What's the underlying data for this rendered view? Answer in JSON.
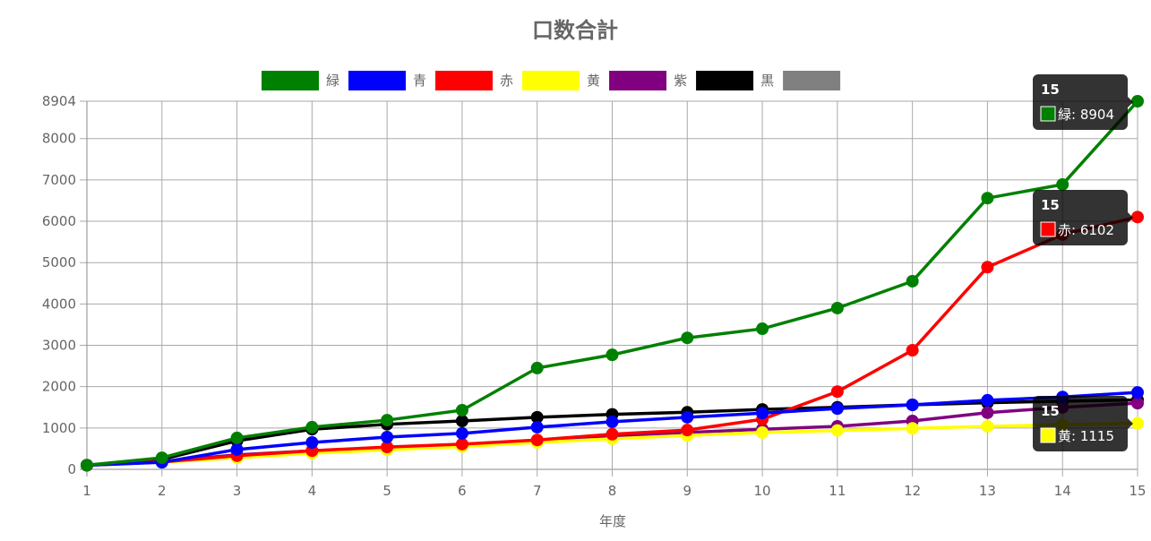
{
  "chart_data": {
    "type": "line",
    "title": "口数合計",
    "x_label": "年度",
    "x": [
      1,
      2,
      3,
      4,
      5,
      6,
      7,
      8,
      9,
      10,
      11,
      12,
      13,
      14,
      15
    ],
    "xlim": [
      1,
      15
    ],
    "xticks": [
      1,
      2,
      3,
      4,
      5,
      6,
      7,
      8,
      9,
      10,
      11,
      12,
      13,
      14,
      15
    ],
    "ylim": [
      0,
      8904
    ],
    "yticks": [
      0,
      1000,
      2000,
      3000,
      4000,
      5000,
      6000,
      7000,
      8000,
      8904
    ],
    "grid": true,
    "legend": "top",
    "series": [
      {
        "name": "緑",
        "color": "#008000",
        "values": [
          100,
          280,
          760,
          1020,
          1190,
          1430,
          2450,
          2770,
          3180,
          3400,
          3900,
          4550,
          6560,
          6890,
          8904
        ]
      },
      {
        "name": "青",
        "color": "#0000ff",
        "values": [
          100,
          170,
          480,
          650,
          780,
          870,
          1020,
          1150,
          1260,
          1360,
          1470,
          1560,
          1670,
          1750,
          1860
        ]
      },
      {
        "name": "赤",
        "color": "#ff0000",
        "values": [
          100,
          180,
          330,
          450,
          540,
          610,
          710,
          850,
          950,
          1210,
          1880,
          2880,
          4890,
          5680,
          6102
        ]
      },
      {
        "name": "黄",
        "color": "#ffff00",
        "values": [
          100,
          170,
          280,
          390,
          470,
          550,
          650,
          740,
          820,
          890,
          940,
          990,
          1040,
          1080,
          1115
        ]
      },
      {
        "name": "紫",
        "color": "#800080",
        "values": [
          100,
          190,
          350,
          450,
          520,
          590,
          690,
          800,
          890,
          970,
          1040,
          1170,
          1370,
          1500,
          1600
        ]
      },
      {
        "name": "黒",
        "color": "#000000",
        "values": [
          100,
          240,
          690,
          970,
          1090,
          1170,
          1260,
          1330,
          1380,
          1450,
          1500,
          1560,
          1610,
          1650,
          1680
        ]
      },
      {
        "color": "#808080",
        "values": [
          null,
          null,
          null,
          null,
          null,
          null,
          null,
          null,
          null,
          null,
          null,
          null,
          null,
          null,
          null
        ]
      }
    ],
    "tooltips": [
      {
        "title": "15",
        "text": "緑: 8904",
        "color": "#008000"
      },
      {
        "title": "15",
        "text": "赤: 6102",
        "color": "#ff0000"
      },
      {
        "title": "15",
        "text": "黄: 1115",
        "color": "#ffff00"
      }
    ]
  }
}
